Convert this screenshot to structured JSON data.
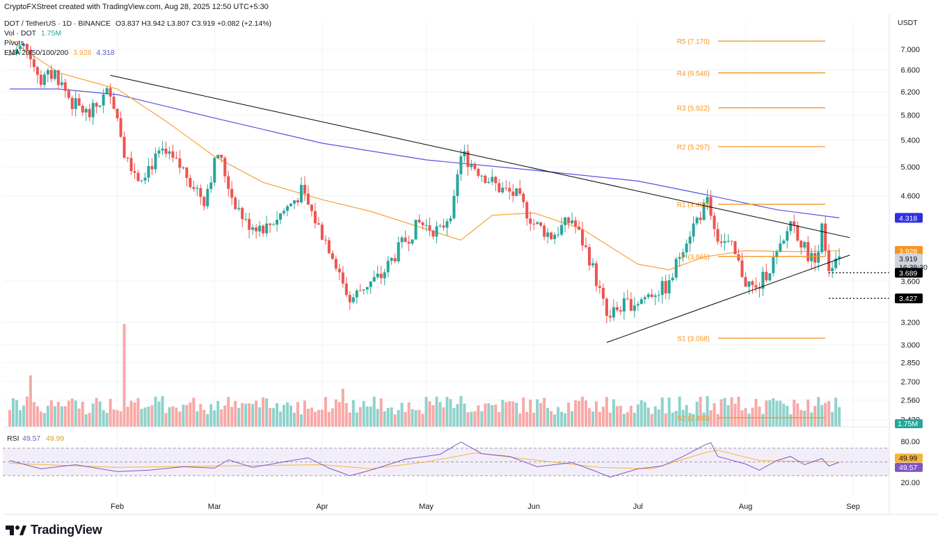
{
  "header": {
    "attribution": "CryptoFXStreet created with TradingView.com, Aug 28, 2025 12:50 UTC+5:30",
    "symbol_line": "DOT / TetherUS · 1D · BINANCE",
    "ohlc": "O3.837  H3.942  L3.807  C3.919  +0.082 (+2.14%)",
    "volume_label": "Vol · DOT",
    "volume_value": "1.75M",
    "pivots_label": "Pivots",
    "ema_label": "EMA 20/50/100/200",
    "ema50_value": "3.928",
    "ema200_value": "4.318",
    "currency": "USDT"
  },
  "branding": {
    "name": "TradingView"
  },
  "colors": {
    "up": "#26a69a",
    "down": "#ef5350",
    "ema50": "#f7a035",
    "ema200": "#5050e6",
    "pivot": "#f7941d",
    "rsi": "#7e57c2",
    "rsi_ma": "#f5b33b",
    "trendline": "#000000"
  },
  "chart_data": {
    "type": "candlestick",
    "title": "DOT / TetherUS · 1D · BINANCE",
    "price_scale": "log",
    "y_ticks": [
      "7.000",
      "6.600",
      "6.200",
      "5.800",
      "5.400",
      "5.000",
      "4.600",
      "3.600",
      "3.200",
      "3.000",
      "2.850",
      "2.700",
      "2.560",
      "2.420"
    ],
    "x_ticks": [
      "Feb",
      "Mar",
      "Apr",
      "May",
      "Jun",
      "Jul",
      "Aug",
      "Sep"
    ],
    "pivot_levels": [
      {
        "label": "R5 (7.170)",
        "value": 7.17
      },
      {
        "label": "R4 (6.546)",
        "value": 6.546
      },
      {
        "label": "R3 (5.922)",
        "value": 5.922
      },
      {
        "label": "R2 (5.297)",
        "value": 5.297
      },
      {
        "label": "R1 (4.490)",
        "value": 4.49
      },
      {
        "label": "P (3.865)",
        "value": 3.865
      },
      {
        "label": "S1 (3.058)",
        "value": 3.058
      },
      {
        "label": "S2 (2.433)",
        "value": 2.433
      }
    ],
    "price_markers": [
      {
        "label": "4.318",
        "value": 4.318,
        "kind": "ema200"
      },
      {
        "label": "3.928",
        "value": 3.928,
        "kind": "ema50"
      },
      {
        "label": "3.919",
        "value": 3.919,
        "kind": "last",
        "countdown": "16:39:30"
      },
      {
        "label": "3.689",
        "value": 3.689,
        "kind": "support"
      },
      {
        "label": "3.427",
        "value": 3.427,
        "kind": "support"
      }
    ],
    "support_levels": [
      3.689,
      3.427
    ],
    "descending_trendline": {
      "from": {
        "date": "2025-01-30",
        "price": 6.5
      },
      "to": {
        "date": "2025-08-31",
        "price": 4.08
      }
    },
    "ascending_trendline": {
      "from": {
        "date": "2025-06-22",
        "price": 3.02
      },
      "to": {
        "date": "2025-08-31",
        "price": 3.88
      }
    },
    "ema50": [
      {
        "date": "2025-01-01",
        "value": 7.2
      },
      {
        "date": "2025-01-15",
        "value": 6.55
      },
      {
        "date": "2025-02-01",
        "value": 6.25
      },
      {
        "date": "2025-02-15",
        "value": 5.7
      },
      {
        "date": "2025-03-01",
        "value": 5.15
      },
      {
        "date": "2025-03-15",
        "value": 4.78
      },
      {
        "date": "2025-04-01",
        "value": 4.55
      },
      {
        "date": "2025-04-15",
        "value": 4.4
      },
      {
        "date": "2025-05-01",
        "value": 4.18
      },
      {
        "date": "2025-05-11",
        "value": 4.05
      },
      {
        "date": "2025-05-20",
        "value": 4.35
      },
      {
        "date": "2025-06-01",
        "value": 4.38
      },
      {
        "date": "2025-06-15",
        "value": 4.18
      },
      {
        "date": "2025-07-01",
        "value": 3.78
      },
      {
        "date": "2025-07-10",
        "value": 3.72
      },
      {
        "date": "2025-07-20",
        "value": 3.86
      },
      {
        "date": "2025-08-01",
        "value": 3.93
      },
      {
        "date": "2025-08-15",
        "value": 3.92
      },
      {
        "date": "2025-08-28",
        "value": 3.928
      }
    ],
    "ema200": [
      {
        "date": "2025-01-01",
        "value": 6.25
      },
      {
        "date": "2025-01-15",
        "value": 6.25
      },
      {
        "date": "2025-02-01",
        "value": 6.15
      },
      {
        "date": "2025-03-01",
        "value": 5.75
      },
      {
        "date": "2025-04-01",
        "value": 5.35
      },
      {
        "date": "2025-05-01",
        "value": 5.1
      },
      {
        "date": "2025-06-01",
        "value": 4.95
      },
      {
        "date": "2025-07-01",
        "value": 4.8
      },
      {
        "date": "2025-07-20",
        "value": 4.62
      },
      {
        "date": "2025-08-10",
        "value": 4.42
      },
      {
        "date": "2025-08-28",
        "value": 4.318
      }
    ],
    "close_series": [
      {
        "date": "2025-01-01",
        "value": 6.9
      },
      {
        "date": "2025-01-06",
        "value": 7.1
      },
      {
        "date": "2025-01-10",
        "value": 6.4
      },
      {
        "date": "2025-01-14",
        "value": 6.55
      },
      {
        "date": "2025-01-19",
        "value": 6.0
      },
      {
        "date": "2025-01-24",
        "value": 5.8
      },
      {
        "date": "2025-01-30",
        "value": 6.25
      },
      {
        "date": "2025-02-03",
        "value": 5.25
      },
      {
        "date": "2025-02-07",
        "value": 4.85
      },
      {
        "date": "2025-02-14",
        "value": 5.2
      },
      {
        "date": "2025-02-20",
        "value": 4.95
      },
      {
        "date": "2025-02-26",
        "value": 4.55
      },
      {
        "date": "2025-03-02",
        "value": 5.2
      },
      {
        "date": "2025-03-06",
        "value": 4.6
      },
      {
        "date": "2025-03-10",
        "value": 4.25
      },
      {
        "date": "2025-03-16",
        "value": 4.2
      },
      {
        "date": "2025-03-22",
        "value": 4.45
      },
      {
        "date": "2025-03-26",
        "value": 4.65
      },
      {
        "date": "2025-03-31",
        "value": 4.2
      },
      {
        "date": "2025-04-04",
        "value": 3.9
      },
      {
        "date": "2025-04-09",
        "value": 3.4
      },
      {
        "date": "2025-04-13",
        "value": 3.55
      },
      {
        "date": "2025-04-18",
        "value": 3.65
      },
      {
        "date": "2025-04-24",
        "value": 4.0
      },
      {
        "date": "2025-04-29",
        "value": 4.25
      },
      {
        "date": "2025-05-05",
        "value": 4.15
      },
      {
        "date": "2025-05-09",
        "value": 4.5
      },
      {
        "date": "2025-05-11",
        "value": 5.2
      },
      {
        "date": "2025-05-16",
        "value": 4.95
      },
      {
        "date": "2025-05-22",
        "value": 4.7
      },
      {
        "date": "2025-05-27",
        "value": 4.6
      },
      {
        "date": "2025-06-01",
        "value": 4.25
      },
      {
        "date": "2025-06-06",
        "value": 4.1
      },
      {
        "date": "2025-06-12",
        "value": 4.3
      },
      {
        "date": "2025-06-17",
        "value": 3.85
      },
      {
        "date": "2025-06-22",
        "value": 3.25
      },
      {
        "date": "2025-06-26",
        "value": 3.35
      },
      {
        "date": "2025-07-01",
        "value": 3.4
      },
      {
        "date": "2025-07-06",
        "value": 3.5
      },
      {
        "date": "2025-07-10",
        "value": 3.55
      },
      {
        "date": "2025-07-14",
        "value": 4.0
      },
      {
        "date": "2025-07-18",
        "value": 4.3
      },
      {
        "date": "2025-07-21",
        "value": 4.5
      },
      {
        "date": "2025-07-24",
        "value": 4.1
      },
      {
        "date": "2025-07-28",
        "value": 3.95
      },
      {
        "date": "2025-08-01",
        "value": 3.6
      },
      {
        "date": "2025-08-04",
        "value": 3.5
      },
      {
        "date": "2025-08-08",
        "value": 3.75
      },
      {
        "date": "2025-08-12",
        "value": 4.0
      },
      {
        "date": "2025-08-14",
        "value": 4.3
      },
      {
        "date": "2025-08-18",
        "value": 3.95
      },
      {
        "date": "2025-08-21",
        "value": 3.8
      },
      {
        "date": "2025-08-23",
        "value": 4.2
      },
      {
        "date": "2025-08-25",
        "value": 3.75
      },
      {
        "date": "2025-08-28",
        "value": 3.919
      }
    ],
    "volume": {
      "last_label": "1.75M",
      "spikes": [
        {
          "date": "2025-02-03",
          "relative": 1.0
        },
        {
          "date": "2025-01-07",
          "relative": 0.5
        },
        {
          "date": "2025-04-07",
          "relative": 0.37
        },
        {
          "date": "2025-05-11",
          "relative": 0.3
        },
        {
          "date": "2025-06-22",
          "relative": 0.29
        },
        {
          "date": "2025-07-21",
          "relative": 0.3
        },
        {
          "date": "2025-08-22",
          "relative": 0.29
        }
      ]
    },
    "rsi": {
      "label": "RSI",
      "value": "49.57",
      "ma_value": "49.99",
      "levels": [
        70,
        50,
        30
      ],
      "ticks": [
        "80.00",
        "40.00",
        "20.00"
      ],
      "series": [
        {
          "date": "2025-01-01",
          "value": 52
        },
        {
          "date": "2025-01-10",
          "value": 40
        },
        {
          "date": "2025-01-20",
          "value": 46
        },
        {
          "date": "2025-02-01",
          "value": 36
        },
        {
          "date": "2025-02-10",
          "value": 38
        },
        {
          "date": "2025-02-20",
          "value": 43
        },
        {
          "date": "2025-03-01",
          "value": 41
        },
        {
          "date": "2025-03-05",
          "value": 53
        },
        {
          "date": "2025-03-12",
          "value": 42
        },
        {
          "date": "2025-03-22",
          "value": 51
        },
        {
          "date": "2025-03-28",
          "value": 56
        },
        {
          "date": "2025-04-03",
          "value": 41
        },
        {
          "date": "2025-04-09",
          "value": 30
        },
        {
          "date": "2025-04-15",
          "value": 38
        },
        {
          "date": "2025-04-25",
          "value": 54
        },
        {
          "date": "2025-05-05",
          "value": 61
        },
        {
          "date": "2025-05-11",
          "value": 79
        },
        {
          "date": "2025-05-17",
          "value": 62
        },
        {
          "date": "2025-05-25",
          "value": 58
        },
        {
          "date": "2025-06-02",
          "value": 43
        },
        {
          "date": "2025-06-12",
          "value": 49
        },
        {
          "date": "2025-06-18",
          "value": 38
        },
        {
          "date": "2025-06-23",
          "value": 28
        },
        {
          "date": "2025-07-01",
          "value": 40
        },
        {
          "date": "2025-07-08",
          "value": 44
        },
        {
          "date": "2025-07-14",
          "value": 58
        },
        {
          "date": "2025-07-20",
          "value": 74
        },
        {
          "date": "2025-07-22",
          "value": 78
        },
        {
          "date": "2025-07-24",
          "value": 58
        },
        {
          "date": "2025-08-01",
          "value": 47
        },
        {
          "date": "2025-08-05",
          "value": 38
        },
        {
          "date": "2025-08-10",
          "value": 52
        },
        {
          "date": "2025-08-14",
          "value": 58
        },
        {
          "date": "2025-08-18",
          "value": 46
        },
        {
          "date": "2025-08-23",
          "value": 55
        },
        {
          "date": "2025-08-25",
          "value": 44
        },
        {
          "date": "2025-08-28",
          "value": 49.57
        }
      ],
      "ma_series": [
        {
          "date": "2025-01-01",
          "value": 48
        },
        {
          "date": "2025-02-01",
          "value": 42
        },
        {
          "date": "2025-03-01",
          "value": 44
        },
        {
          "date": "2025-04-01",
          "value": 46
        },
        {
          "date": "2025-04-15",
          "value": 40
        },
        {
          "date": "2025-05-01",
          "value": 50
        },
        {
          "date": "2025-05-15",
          "value": 63
        },
        {
          "date": "2025-06-01",
          "value": 53
        },
        {
          "date": "2025-06-20",
          "value": 42
        },
        {
          "date": "2025-07-05",
          "value": 40
        },
        {
          "date": "2025-07-20",
          "value": 63
        },
        {
          "date": "2025-07-24",
          "value": 67
        },
        {
          "date": "2025-08-05",
          "value": 52
        },
        {
          "date": "2025-08-15",
          "value": 51
        },
        {
          "date": "2025-08-28",
          "value": 49.99
        }
      ]
    }
  }
}
